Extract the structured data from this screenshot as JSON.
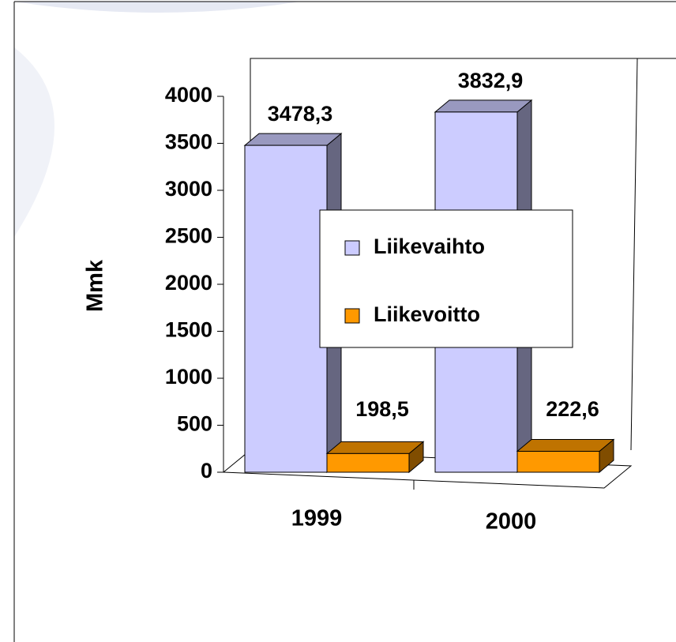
{
  "chart_data": {
    "type": "bar3d",
    "categories": [
      "1999",
      "2000"
    ],
    "series": [
      {
        "name": "Liikevaihto",
        "color": "#ccccff",
        "values": [
          3478.3,
          3832.9
        ],
        "value_labels": [
          "3478,3",
          "3832,9"
        ]
      },
      {
        "name": "Liikevoitto",
        "color": "#ff9900",
        "values": [
          198.5,
          222.6
        ],
        "value_labels": [
          "198,5",
          "222,6"
        ]
      }
    ],
    "y_label": "Mmk",
    "ylim": [
      0,
      4000
    ],
    "yticks": [
      0,
      500,
      1000,
      1500,
      2000,
      2500,
      3000,
      3500,
      4000
    ],
    "legend": "right"
  }
}
